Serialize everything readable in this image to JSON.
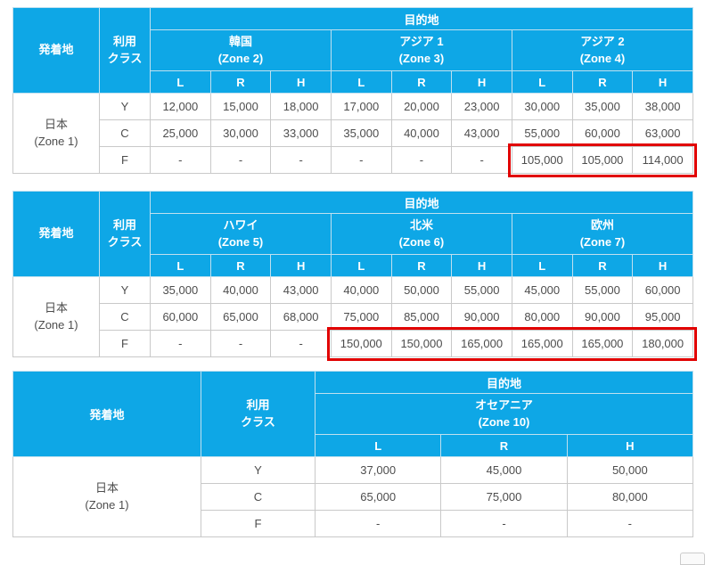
{
  "colors": {
    "header_blue": "#0ea7e6",
    "highlight_red": "#e10000",
    "body_text": "#4d4d4d"
  },
  "chart_data": [
    {
      "type": "table",
      "origin_header": "発着地",
      "class_header": "利用\nクラス",
      "dest_header": "目的地",
      "zones": [
        "韓国\n(Zone 2)",
        "アジア 1\n(Zone 3)",
        "アジア 2\n(Zone 4)"
      ],
      "season_cols": [
        "L",
        "R",
        "H"
      ],
      "origin": "日本\n(Zone 1)",
      "rows": [
        {
          "cls": "Y",
          "values": [
            "12,000",
            "15,000",
            "18,000",
            "17,000",
            "20,000",
            "23,000",
            "30,000",
            "35,000",
            "38,000"
          ]
        },
        {
          "cls": "C",
          "values": [
            "25,000",
            "30,000",
            "33,000",
            "35,000",
            "40,000",
            "43,000",
            "55,000",
            "60,000",
            "63,000"
          ]
        },
        {
          "cls": "F",
          "values": [
            "-",
            "-",
            "-",
            "-",
            "-",
            "-",
            "105,000",
            "105,000",
            "114,000"
          ]
        }
      ],
      "highlight": {
        "row": "F",
        "col_start": 6,
        "col_end": 8,
        "color": "#e10000"
      }
    },
    {
      "type": "table",
      "origin_header": "発着地",
      "class_header": "利用\nクラス",
      "dest_header": "目的地",
      "zones": [
        "ハワイ\n(Zone 5)",
        "北米\n(Zone 6)",
        "欧州\n(Zone 7)"
      ],
      "season_cols": [
        "L",
        "R",
        "H"
      ],
      "origin": "日本\n(Zone 1)",
      "rows": [
        {
          "cls": "Y",
          "values": [
            "35,000",
            "40,000",
            "43,000",
            "40,000",
            "50,000",
            "55,000",
            "45,000",
            "55,000",
            "60,000"
          ]
        },
        {
          "cls": "C",
          "values": [
            "60,000",
            "65,000",
            "68,000",
            "75,000",
            "85,000",
            "90,000",
            "80,000",
            "90,000",
            "95,000"
          ]
        },
        {
          "cls": "F",
          "values": [
            "-",
            "-",
            "-",
            "150,000",
            "150,000",
            "165,000",
            "165,000",
            "165,000",
            "180,000"
          ]
        }
      ],
      "highlight": {
        "row": "F",
        "col_start": 3,
        "col_end": 8,
        "color": "#e10000"
      }
    },
    {
      "type": "table",
      "origin_header": "発着地",
      "class_header": "利用\nクラス",
      "dest_header": "目的地",
      "zones": [
        "オセアニア\n(Zone 10)"
      ],
      "season_cols": [
        "L",
        "R",
        "H"
      ],
      "origin": "日本\n(Zone 1)",
      "rows": [
        {
          "cls": "Y",
          "values": [
            "37,000",
            "45,000",
            "50,000"
          ]
        },
        {
          "cls": "C",
          "values": [
            "65,000",
            "75,000",
            "80,000"
          ]
        },
        {
          "cls": "F",
          "values": [
            "-",
            "-",
            "-"
          ]
        }
      ],
      "highlight": null
    }
  ]
}
